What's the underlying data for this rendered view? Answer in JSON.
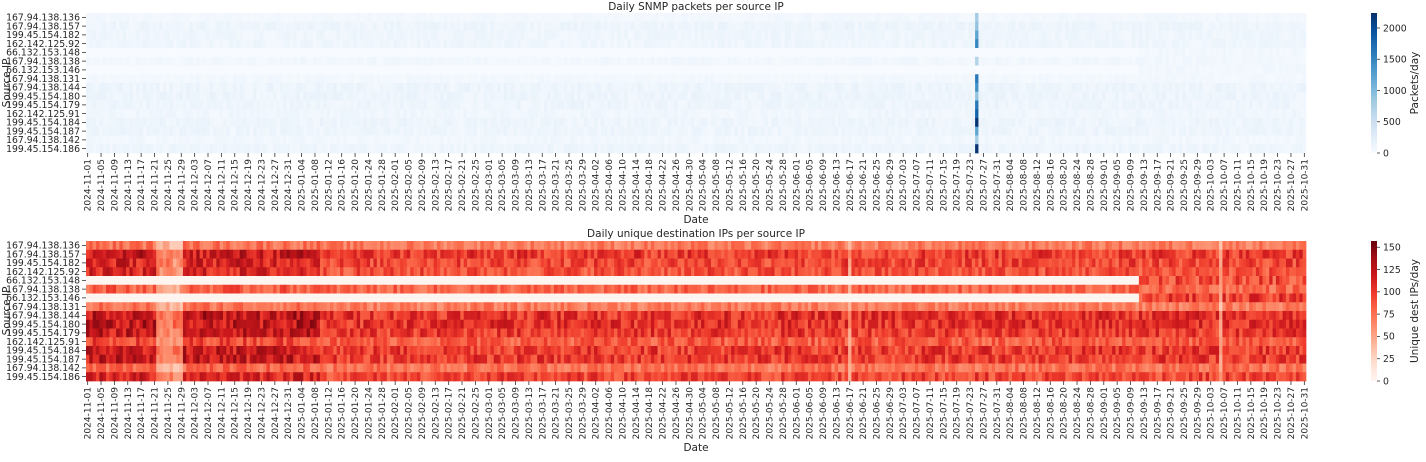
{
  "chart_data": [
    {
      "type": "heatmap",
      "title": "Daily SNMP packets per source IP",
      "xlabel": "Date",
      "ylabel": "Source IP",
      "colorbar_label": "Packets/day",
      "colormap": "Blues",
      "color_range": [
        0,
        2240
      ],
      "colorbar_ticks": [
        0,
        500,
        1000,
        1500,
        2000
      ],
      "date_range": [
        "2024-11-01",
        "2025-10-31"
      ],
      "rows": [
        "167.94.138.136",
        "167.94.138.157",
        "199.45.154.182",
        "162.142.125.92",
        "66.132.153.148",
        "167.94.138.138",
        "66.132.153.146",
        "167.94.138.131",
        "167.94.138.144",
        "199.45.154.180",
        "199.45.154.179",
        "162.142.125.91",
        "199.45.154.184",
        "199.45.154.187",
        "167.94.138.142",
        "199.45.154.186"
      ],
      "typical_daily_value": [
        60,
        110,
        100,
        95,
        0,
        70,
        0,
        60,
        115,
        115,
        110,
        85,
        110,
        110,
        70,
        105
      ],
      "inactive_until": {
        "66.132.153.148": "2025-09-12",
        "66.132.153.146": "2025-09-12"
      },
      "spike": {
        "date": "2025-07-25",
        "values": [
          800,
          900,
          1200,
          1500,
          0,
          700,
          0,
          1600,
          1400,
          900,
          1600,
          1800,
          2200,
          1200,
          800,
          2200
        ]
      },
      "x_tick_labels": [
        "2024-11-01",
        "2024-11-05",
        "2024-11-09",
        "2024-11-13",
        "2024-11-17",
        "2024-11-21",
        "2024-11-25",
        "2024-11-29",
        "2024-12-03",
        "2024-12-07",
        "2024-12-11",
        "2024-12-15",
        "2024-12-19",
        "2024-12-23",
        "2024-12-27",
        "2024-12-31",
        "2025-01-04",
        "2025-01-08",
        "2025-01-12",
        "2025-01-16",
        "2025-01-20",
        "2025-01-24",
        "2025-01-28",
        "2025-02-01",
        "2025-02-05",
        "2025-02-09",
        "2025-02-13",
        "2025-02-17",
        "2025-02-21",
        "2025-02-25",
        "2025-03-01",
        "2025-03-05",
        "2025-03-09",
        "2025-03-13",
        "2025-03-17",
        "2025-03-21",
        "2025-03-25",
        "2025-03-29",
        "2025-04-02",
        "2025-04-06",
        "2025-04-10",
        "2025-04-14",
        "2025-04-18",
        "2025-04-22",
        "2025-04-26",
        "2025-04-30",
        "2025-05-04",
        "2025-05-08",
        "2025-05-12",
        "2025-05-16",
        "2025-05-20",
        "2025-05-24",
        "2025-05-28",
        "2025-06-01",
        "2025-06-05",
        "2025-06-09",
        "2025-06-13",
        "2025-06-17",
        "2025-06-21",
        "2025-06-25",
        "2025-06-29",
        "2025-07-03",
        "2025-07-07",
        "2025-07-11",
        "2025-07-15",
        "2025-07-19",
        "2025-07-23",
        "2025-07-27",
        "2025-07-31",
        "2025-08-04",
        "2025-08-08",
        "2025-08-12",
        "2025-08-16",
        "2025-08-20",
        "2025-08-24",
        "2025-08-28",
        "2025-09-01",
        "2025-09-05",
        "2025-09-09",
        "2025-09-13",
        "2025-09-17",
        "2025-09-21",
        "2025-09-25",
        "2025-09-29",
        "2025-10-03",
        "2025-10-07",
        "2025-10-11",
        "2025-10-15",
        "2025-10-19",
        "2025-10-23",
        "2025-10-27",
        "2025-10-31"
      ]
    },
    {
      "type": "heatmap",
      "title": "Daily unique destination IPs per source IP",
      "xlabel": "Date",
      "ylabel": "Source IP",
      "colorbar_label": "Unique dest IPs/day",
      "colormap": "Reds",
      "color_range": [
        0,
        157
      ],
      "colorbar_ticks": [
        0,
        25,
        50,
        75,
        100,
        125,
        150
      ],
      "date_range": [
        "2024-11-01",
        "2025-10-31"
      ],
      "rows": [
        "167.94.138.136",
        "167.94.138.157",
        "199.45.154.182",
        "162.142.125.92",
        "66.132.153.148",
        "167.94.138.138",
        "66.132.153.146",
        "167.94.138.131",
        "167.94.138.144",
        "199.45.154.180",
        "199.45.154.179",
        "162.142.125.91",
        "199.45.154.184",
        "199.45.154.187",
        "167.94.138.142",
        "199.45.154.186"
      ],
      "typical_daily_value_before_2025-01-10": [
        75,
        120,
        115,
        110,
        0,
        85,
        0,
        75,
        125,
        125,
        120,
        95,
        120,
        120,
        80,
        115
      ],
      "typical_daily_value_after_2025-01-10": [
        70,
        100,
        95,
        90,
        0,
        80,
        0,
        70,
        105,
        105,
        100,
        85,
        100,
        100,
        75,
        95
      ],
      "value_after_activation": {
        "66.132.153.148": 90,
        "66.132.153.146": 95
      },
      "inactive_until": {
        "66.132.153.148": "2025-09-12",
        "66.132.153.146": "2025-09-12"
      },
      "low_activity_period": [
        "2024-11-22",
        "2024-11-29"
      ],
      "low_activity_days": [
        "2025-06-17",
        "2025-10-06"
      ],
      "x_tick_labels": [
        "2024-11-01",
        "2024-11-05",
        "2024-11-09",
        "2024-11-13",
        "2024-11-17",
        "2024-11-21",
        "2024-11-25",
        "2024-11-29",
        "2024-12-03",
        "2024-12-07",
        "2024-12-11",
        "2024-12-15",
        "2024-12-19",
        "2024-12-23",
        "2024-12-27",
        "2024-12-31",
        "2025-01-04",
        "2025-01-08",
        "2025-01-12",
        "2025-01-16",
        "2025-01-20",
        "2025-01-24",
        "2025-01-28",
        "2025-02-01",
        "2025-02-05",
        "2025-02-09",
        "2025-02-13",
        "2025-02-17",
        "2025-02-21",
        "2025-02-25",
        "2025-03-01",
        "2025-03-05",
        "2025-03-09",
        "2025-03-13",
        "2025-03-17",
        "2025-03-21",
        "2025-03-25",
        "2025-03-29",
        "2025-04-02",
        "2025-04-06",
        "2025-04-10",
        "2025-04-14",
        "2025-04-18",
        "2025-04-22",
        "2025-04-26",
        "2025-04-30",
        "2025-05-04",
        "2025-05-08",
        "2025-05-12",
        "2025-05-16",
        "2025-05-20",
        "2025-05-24",
        "2025-05-28",
        "2025-06-01",
        "2025-06-05",
        "2025-06-09",
        "2025-06-13",
        "2025-06-17",
        "2025-06-21",
        "2025-06-25",
        "2025-06-29",
        "2025-07-03",
        "2025-07-07",
        "2025-07-11",
        "2025-07-15",
        "2025-07-19",
        "2025-07-23",
        "2025-07-27",
        "2025-07-31",
        "2025-08-04",
        "2025-08-08",
        "2025-08-12",
        "2025-08-16",
        "2025-08-20",
        "2025-08-24",
        "2025-08-28",
        "2025-09-01",
        "2025-09-05",
        "2025-09-09",
        "2025-09-13",
        "2025-09-17",
        "2025-09-21",
        "2025-09-25",
        "2025-09-29",
        "2025-10-03",
        "2025-10-07",
        "2025-10-11",
        "2025-10-15",
        "2025-10-19",
        "2025-10-23",
        "2025-10-27",
        "2025-10-31"
      ]
    }
  ]
}
